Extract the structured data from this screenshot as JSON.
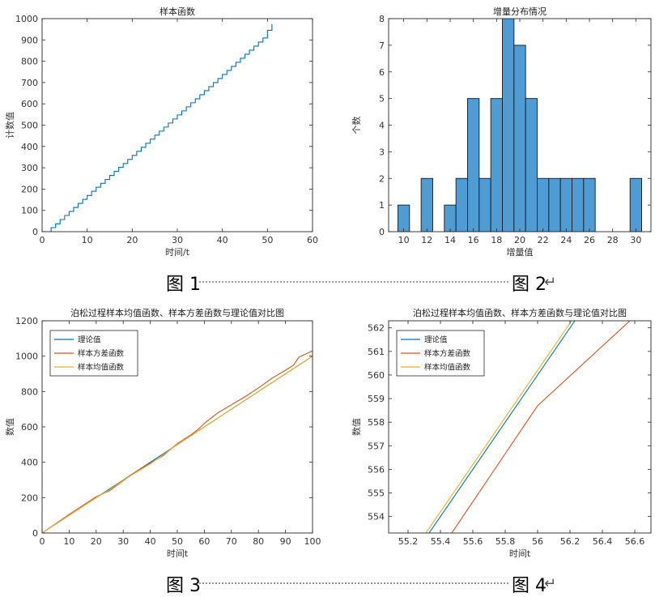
{
  "captions": {
    "c1": "图 1",
    "c2": "图 2",
    "c3": "图 3",
    "c4": "图 4",
    "return_mark": "↵"
  },
  "colors": {
    "blue": "#0072BD",
    "orange": "#D95319",
    "yellow": "#EDB120",
    "bar_fill": "#4F9BD4",
    "bar_edge": "#1a1a1a"
  },
  "chart_data": [
    {
      "id": "p1",
      "type": "line",
      "step": true,
      "title": "样本函数",
      "xlabel": "时间/t",
      "ylabel": "计数值",
      "xlim": [
        0,
        60
      ],
      "ylim": [
        0,
        1000
      ],
      "xticks": [
        0,
        10,
        20,
        30,
        40,
        50,
        60
      ],
      "yticks": [
        0,
        100,
        200,
        300,
        400,
        500,
        600,
        700,
        800,
        900,
        1000
      ],
      "series": [
        {
          "color": "#0072BD",
          "x": [
            0,
            1,
            2,
            3,
            4,
            5,
            6,
            7,
            8,
            9,
            10,
            11,
            12,
            13,
            14,
            15,
            16,
            17,
            18,
            19,
            20,
            21,
            22,
            23,
            24,
            25,
            26,
            27,
            28,
            29,
            30,
            31,
            32,
            33,
            34,
            35,
            36,
            37,
            38,
            39,
            40,
            41,
            42,
            43,
            44,
            45,
            46,
            47,
            48,
            49,
            50,
            51
          ],
          "y": [
            0,
            0,
            19,
            37,
            57,
            76,
            95,
            114,
            133,
            152,
            170,
            190,
            209,
            227,
            245,
            264,
            283,
            302,
            320,
            339,
            358,
            377,
            396,
            415,
            434,
            453,
            472,
            491,
            510,
            529,
            548,
            567,
            586,
            605,
            624,
            643,
            662,
            681,
            700,
            719,
            738,
            757,
            776,
            795,
            814,
            833,
            852,
            871,
            890,
            909,
            945,
            975
          ]
        }
      ]
    },
    {
      "id": "p2",
      "type": "bar",
      "title": "增量分布情况",
      "xlabel": "增量值",
      "ylabel": "个数",
      "xlim": [
        8.7,
        31.3
      ],
      "ylim": [
        0,
        8
      ],
      "xticks": [
        10,
        12,
        14,
        16,
        18,
        20,
        22,
        24,
        26,
        28,
        30
      ],
      "yticks": [
        0,
        1,
        2,
        3,
        4,
        5,
        6,
        7,
        8
      ],
      "bin_width": 1,
      "bins": [
        10,
        12,
        14,
        15,
        16,
        17,
        18,
        19,
        20,
        21,
        22,
        23,
        24,
        25,
        26,
        30
      ],
      "values": [
        1,
        2,
        1,
        2,
        5,
        2,
        5,
        8,
        7,
        5,
        2,
        2,
        2,
        2,
        2,
        2
      ]
    },
    {
      "id": "p3",
      "type": "line",
      "title": "泊松过程样本均值函数、样本方差函数与理论值对比图",
      "xlabel": "时间t",
      "ylabel": "数值",
      "xlim": [
        0,
        100
      ],
      "ylim": [
        0,
        1200
      ],
      "xticks": [
        0,
        10,
        20,
        30,
        40,
        50,
        60,
        70,
        80,
        90,
        100
      ],
      "yticks": [
        0,
        200,
        400,
        600,
        800,
        1000,
        1200
      ],
      "legend": {
        "position": "top-left",
        "entries": [
          "理论值",
          "样本方差函数",
          "样本均值函数"
        ]
      },
      "series": [
        {
          "name": "理论值",
          "color": "#0072BD",
          "x": [
            0,
            100
          ],
          "y": [
            0,
            1000
          ]
        },
        {
          "name": "样本方差函数",
          "color": "#D95319",
          "x": [
            0,
            10,
            20,
            25,
            30,
            35,
            40,
            45,
            50,
            55,
            58,
            60,
            65,
            70,
            75,
            80,
            85,
            90,
            93,
            95,
            100
          ],
          "y": [
            0,
            105,
            205,
            240,
            295,
            350,
            395,
            440,
            505,
            555,
            590,
            620,
            680,
            725,
            770,
            820,
            875,
            920,
            950,
            995,
            1030
          ]
        },
        {
          "name": "样本均值函数",
          "color": "#EDB120",
          "x": [
            0,
            10,
            20,
            25,
            30,
            35,
            40,
            45,
            50,
            55,
            60,
            65,
            70,
            80,
            90,
            100
          ],
          "y": [
            0,
            100,
            200,
            245,
            298,
            345,
            390,
            445,
            500,
            550,
            600,
            650,
            700,
            800,
            900,
            1000
          ]
        }
      ]
    },
    {
      "id": "p4",
      "type": "line",
      "title": "泊松过程样本均值函数、样本方差函数与理论值对比图",
      "xlabel": "时间t",
      "ylabel": "数值",
      "xlim": [
        55.08,
        56.7
      ],
      "ylim": [
        553.3,
        562.3
      ],
      "xticks": [
        55.2,
        55.4,
        55.6,
        55.8,
        56,
        56.2,
        56.4,
        56.6
      ],
      "yticks": [
        554,
        555,
        556,
        557,
        558,
        559,
        560,
        561,
        562
      ],
      "legend": {
        "position": "top-left",
        "entries": [
          "理论值",
          "样本方差函数",
          "样本均值函数"
        ]
      },
      "series": [
        {
          "name": "理论值",
          "color": "#0072BD",
          "x": [
            55.32,
            56.23
          ],
          "y": [
            553.2,
            562.3
          ]
        },
        {
          "name": "样本方差函数",
          "color": "#D95319",
          "x": [
            55.46,
            56.0,
            56.57
          ],
          "y": [
            553.2,
            558.7,
            562.3
          ]
        },
        {
          "name": "样本均值函数",
          "color": "#EDB120",
          "x": [
            55.3,
            56.21
          ],
          "y": [
            553.2,
            562.3
          ]
        }
      ]
    }
  ]
}
